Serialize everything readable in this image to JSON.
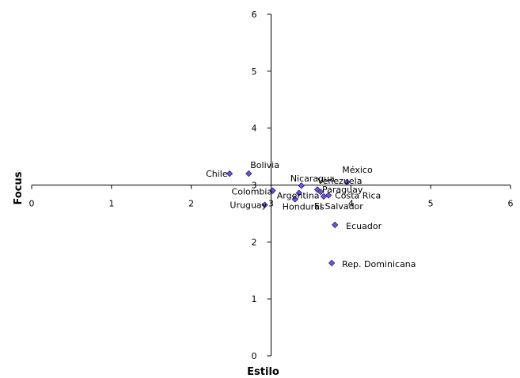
{
  "chart_data": {
    "type": "scatter",
    "title": "",
    "xlabel": "Estilo",
    "ylabel": "Focus",
    "xlim": [
      0,
      6
    ],
    "ylim": [
      0,
      6
    ],
    "x_ticks": [
      "0",
      "1",
      "2",
      "3",
      "4",
      "5",
      "6"
    ],
    "y_ticks": [
      "0",
      "1",
      "2",
      "3",
      "4",
      "5",
      "6"
    ],
    "grid": false,
    "axes_cross_at": {
      "x": 3,
      "y": 3
    },
    "marker": "diamond",
    "marker_color": "#6a5acd",
    "marker_edge_color": "#2a1a8a",
    "points": [
      {
        "label": "Chile",
        "x": 2.48,
        "y": 3.2
      },
      {
        "label": "Bolivia",
        "x": 2.72,
        "y": 3.2
      },
      {
        "label": "México",
        "x": 3.95,
        "y": 3.05
      },
      {
        "label": "Nicaragua",
        "x": 3.38,
        "y": 2.99
      },
      {
        "label": "Venezuela",
        "x": 3.58,
        "y": 2.92
      },
      {
        "label": "Paraguay",
        "x": 3.62,
        "y": 2.88
      },
      {
        "label": "Colombia",
        "x": 3.02,
        "y": 2.9
      },
      {
        "label": "Argentina",
        "x": 3.35,
        "y": 2.86
      },
      {
        "label": "Costa Rica",
        "x": 3.72,
        "y": 2.82
      },
      {
        "label": "El Salvador",
        "x": 3.66,
        "y": 2.8
      },
      {
        "label": "Honduras",
        "x": 3.3,
        "y": 2.75
      },
      {
        "label": "Uruguay",
        "x": 2.92,
        "y": 2.65
      },
      {
        "label": "Ecuador",
        "x": 3.8,
        "y": 2.3
      },
      {
        "label": "Rep. Dominicana",
        "x": 3.76,
        "y": 1.63
      }
    ]
  }
}
